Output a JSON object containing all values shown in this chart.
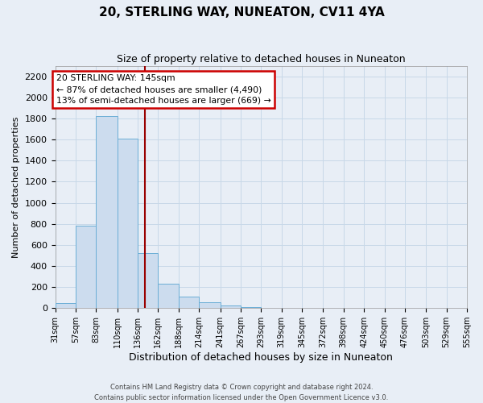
{
  "title": "20, STERLING WAY, NUNEATON, CV11 4YA",
  "subtitle": "Size of property relative to detached houses in Nuneaton",
  "xlabel": "Distribution of detached houses by size in Nuneaton",
  "ylabel": "Number of detached properties",
  "bin_edges": [
    31,
    57,
    83,
    110,
    136,
    162,
    188,
    214,
    241,
    267,
    293,
    319,
    345,
    372,
    398,
    424,
    450,
    476,
    503,
    529,
    555
  ],
  "bin_heights": [
    50,
    780,
    1820,
    1610,
    520,
    230,
    110,
    55,
    25,
    10,
    0,
    0,
    0,
    0,
    0,
    0,
    0,
    0,
    0,
    0
  ],
  "bar_color": "#ccdcee",
  "bar_edge_color": "#6baed6",
  "grid_color": "#c8d8e8",
  "vline_x": 145,
  "vline_color": "#990000",
  "ylim": [
    0,
    2300
  ],
  "yticks": [
    0,
    200,
    400,
    600,
    800,
    1000,
    1200,
    1400,
    1600,
    1800,
    2000,
    2200
  ],
  "annotation_title": "20 STERLING WAY: 145sqm",
  "annotation_line1": "← 87% of detached houses are smaller (4,490)",
  "annotation_line2": "13% of semi-detached houses are larger (669) →",
  "annotation_box_facecolor": "#ffffff",
  "annotation_box_edgecolor": "#cc0000",
  "footer1": "Contains HM Land Registry data © Crown copyright and database right 2024.",
  "footer2": "Contains public sector information licensed under the Open Government Licence v3.0.",
  "background_color": "#e8eef6",
  "tick_labels": [
    "31sqm",
    "57sqm",
    "83sqm",
    "110sqm",
    "136sqm",
    "162sqm",
    "188sqm",
    "214sqm",
    "241sqm",
    "267sqm",
    "293sqm",
    "319sqm",
    "345sqm",
    "372sqm",
    "398sqm",
    "424sqm",
    "450sqm",
    "476sqm",
    "503sqm",
    "529sqm",
    "555sqm"
  ],
  "title_fontsize": 11,
  "subtitle_fontsize": 9,
  "xlabel_fontsize": 9,
  "ylabel_fontsize": 8,
  "xtick_fontsize": 7,
  "ytick_fontsize": 8,
  "footer_fontsize": 6
}
